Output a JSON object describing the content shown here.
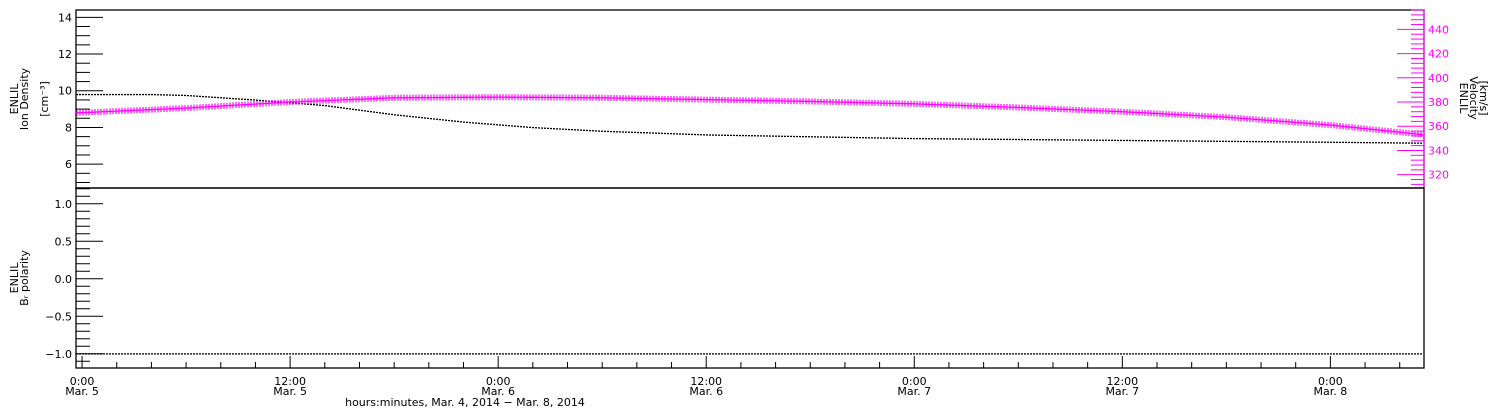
{
  "chart_data": [
    {
      "type": "scatter",
      "panel": "top",
      "ylabel_left": [
        "ENLIL",
        "Ion Density",
        "[cm⁻³]"
      ],
      "ylabel_right": [
        "ENLIL",
        "Velocity",
        "[km/s]"
      ],
      "ylim_left": [
        4.7,
        14.4
      ],
      "ylim_right": [
        309,
        456
      ],
      "yticks_left": [
        "6",
        "8",
        "10",
        "12",
        "14"
      ],
      "yticks_right": [
        "320",
        "340",
        "360",
        "380",
        "400",
        "420",
        "440"
      ],
      "series": [
        {
          "axis": "left",
          "color": "#000000",
          "marker": "dot",
          "x": [
            "2014-03-04 23:39",
            "2014-03-05 04:00",
            "2014-03-05 06:00",
            "2014-03-05 10:00",
            "2014-03-05 14:00",
            "2014-03-05 18:00",
            "2014-03-05 22:00",
            "2014-03-06 02:00",
            "2014-03-06 06:00",
            "2014-03-06 12:00",
            "2014-03-06 18:00",
            "2014-03-07 00:00",
            "2014-03-07 06:00",
            "2014-03-07 12:00",
            "2014-03-07 18:00",
            "2014-03-08 00:00",
            "2014-03-08 05:24"
          ],
          "y": [
            9.8,
            9.8,
            9.75,
            9.5,
            9.2,
            8.7,
            8.3,
            8.0,
            7.8,
            7.6,
            7.5,
            7.4,
            7.35,
            7.3,
            7.25,
            7.2,
            7.15
          ]
        },
        {
          "axis": "right",
          "color": "#ff00ff",
          "marker": "plus",
          "x": [
            "2014-03-04 23:39",
            "2014-03-05 06:00",
            "2014-03-05 12:00",
            "2014-03-05 18:00",
            "2014-03-06 00:00",
            "2014-03-06 06:00",
            "2014-03-06 12:00",
            "2014-03-06 18:00",
            "2014-03-07 00:00",
            "2014-03-07 06:00",
            "2014-03-07 12:00",
            "2014-03-07 18:00",
            "2014-03-08 00:00",
            "2014-03-08 05:24"
          ],
          "y": [
            371,
            375,
            380,
            383.5,
            384,
            383.5,
            382,
            380.5,
            378.5,
            375.5,
            372,
            367.5,
            361,
            353
          ]
        }
      ]
    },
    {
      "type": "scatter",
      "panel": "bottom",
      "ylabel_left": [
        "ENLIL",
        "Bᵣ polarity"
      ],
      "ylim_left": [
        -1.19,
        1.21
      ],
      "yticks_left": [
        "−1.0",
        "−0.5",
        "0.0",
        "0.5",
        "1.0"
      ],
      "series": [
        {
          "axis": "left",
          "color": "#000000",
          "marker": "dot",
          "x": [
            "2014-03-04 23:39",
            "2014-03-08 05:24"
          ],
          "y": [
            -1.0,
            -1.0
          ]
        }
      ]
    }
  ],
  "xaxis": {
    "range": [
      "2014-03-04 23:39",
      "2014-03-08 05:24"
    ],
    "ticks": [
      {
        "time": "0:00",
        "date": "Mar. 5",
        "at": "2014-03-05 00:00"
      },
      {
        "time": "12:00",
        "date": "Mar. 5",
        "at": "2014-03-05 12:00"
      },
      {
        "time": "0:00",
        "date": "Mar. 6",
        "at": "2014-03-06 00:00"
      },
      {
        "time": "12:00",
        "date": "Mar. 6",
        "at": "2014-03-06 12:00"
      },
      {
        "time": "0:00",
        "date": "Mar. 7",
        "at": "2014-03-07 00:00"
      },
      {
        "time": "12:00",
        "date": "Mar. 7",
        "at": "2014-03-07 12:00"
      },
      {
        "time": "0:00",
        "date": "Mar. 8",
        "at": "2014-03-08 00:00"
      }
    ],
    "label": "hours:minutes, Mar.  4, 2014 − Mar.  8, 2014"
  }
}
